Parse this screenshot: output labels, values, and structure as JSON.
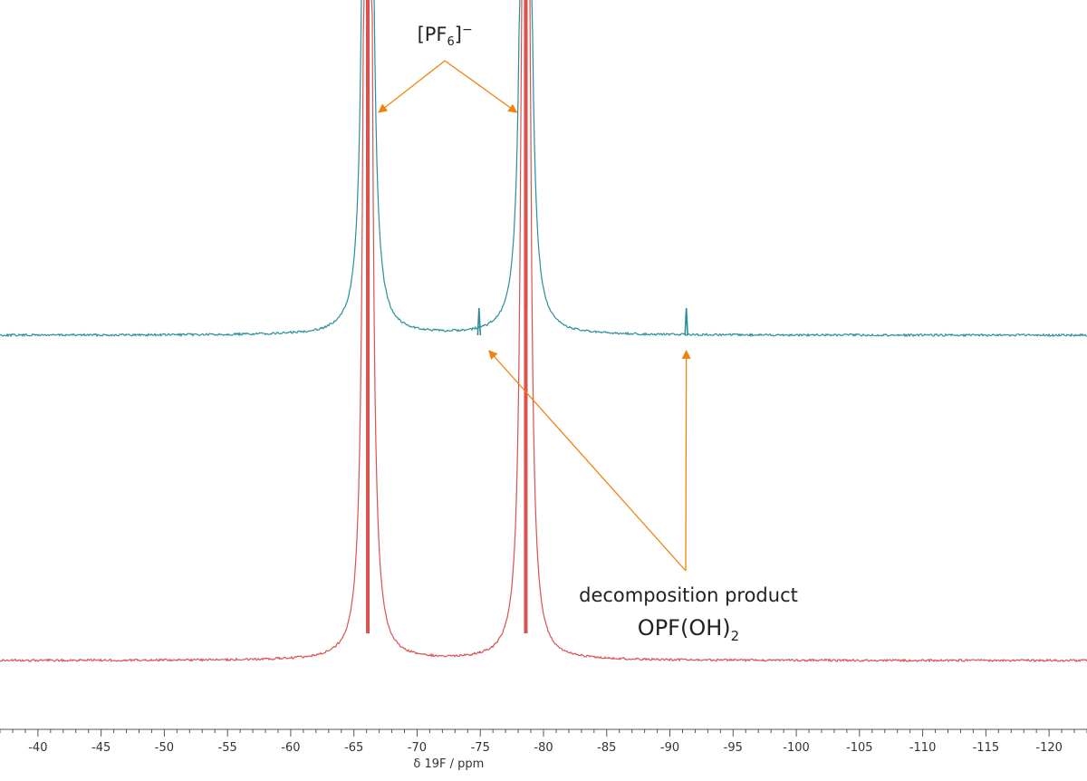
{
  "chart_data": {
    "type": "line",
    "title": "",
    "xlabel": "δ 19F / ppm",
    "ylabel": "",
    "x_reversed": true,
    "xlim": [
      -37,
      -123
    ],
    "x_major_ticks": [
      -40,
      -45,
      -50,
      -55,
      -60,
      -65,
      -70,
      -75,
      -80,
      -85,
      -90,
      -95,
      -100,
      -105,
      -110,
      -115,
      -120
    ],
    "x_tick_labels": [
      "-40",
      "-45",
      "-50",
      "-55",
      "-60",
      "-65",
      "-70",
      "-75",
      "-80",
      "-85",
      "-90",
      "-95",
      "-100",
      "-105",
      "-110",
      "-115",
      "-120"
    ],
    "grid": false,
    "legend": "none",
    "series": [
      {
        "color": "#2a8f9a",
        "peaks": [
          {
            "shift": -66.1,
            "height": "off-scale"
          },
          {
            "shift": -78.6,
            "height": "off-scale"
          },
          {
            "shift": -74.9,
            "height": 0.3
          },
          {
            "shift": -91.3,
            "height": 0.3
          }
        ]
      },
      {
        "color": "#d9534f",
        "peaks": [
          {
            "shift": -66.1,
            "height": "off-scale"
          },
          {
            "shift": -78.6,
            "height": "off-scale"
          }
        ]
      }
    ],
    "annotations": {
      "pf6": {
        "text_main": "[PF",
        "text_sub": "6",
        "text_tail": "]",
        "text_sup": "−",
        "targets": [
          -66.1,
          -78.6
        ]
      },
      "decomp": {
        "line1": "decomposition product",
        "line2_main": "OPF(OH)",
        "line2_sub": "2",
        "targets": [
          -74.9,
          -91.3
        ]
      }
    },
    "arrow_color": "#f0820f"
  }
}
